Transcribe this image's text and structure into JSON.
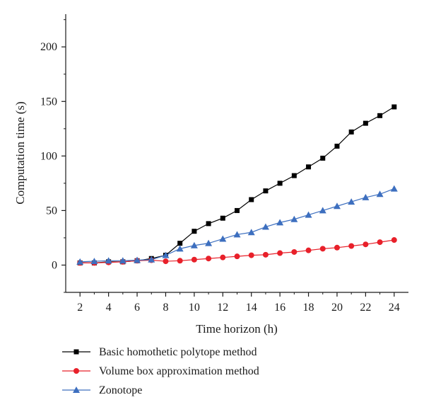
{
  "chart_data": {
    "type": "line",
    "xlabel": "Time horizon (h)",
    "ylabel": "Computation time (s)",
    "xlim": [
      1,
      25
    ],
    "ylim": [
      -25,
      230
    ],
    "x_ticks": [
      2,
      4,
      6,
      8,
      10,
      12,
      14,
      16,
      18,
      20,
      22,
      24
    ],
    "y_ticks": [
      0,
      50,
      100,
      150,
      200
    ],
    "x": [
      2,
      3,
      4,
      5,
      6,
      7,
      8,
      9,
      10,
      11,
      12,
      13,
      14,
      15,
      16,
      17,
      18,
      19,
      20,
      21,
      22,
      23,
      24
    ],
    "series": [
      {
        "name": "Basic homothetic polytope method",
        "color": "#000000",
        "marker": "square",
        "values": [
          2,
          2,
          3,
          3,
          4,
          6,
          9,
          20,
          31,
          38,
          43,
          50,
          60,
          68,
          75,
          82,
          90,
          98,
          109,
          122,
          130,
          137,
          145
        ]
      },
      {
        "name": "Volume box approximation method",
        "color": "#e8202a",
        "marker": "circle",
        "values": [
          2,
          2,
          2.5,
          3,
          4,
          4.5,
          3.5,
          4,
          5,
          6,
          7,
          8,
          9,
          9.5,
          11,
          12,
          13.5,
          15,
          16,
          17.5,
          19,
          21,
          23
        ]
      },
      {
        "name": "Zonotope",
        "color": "#3d6fbf",
        "marker": "triangle",
        "values": [
          3,
          3.5,
          4,
          4,
          4.5,
          5,
          9,
          15,
          18,
          20,
          24,
          28,
          30,
          35,
          39,
          42,
          46,
          50,
          54,
          58,
          62,
          65,
          70
        ]
      }
    ],
    "grid": false,
    "legend_position": "bottom"
  }
}
